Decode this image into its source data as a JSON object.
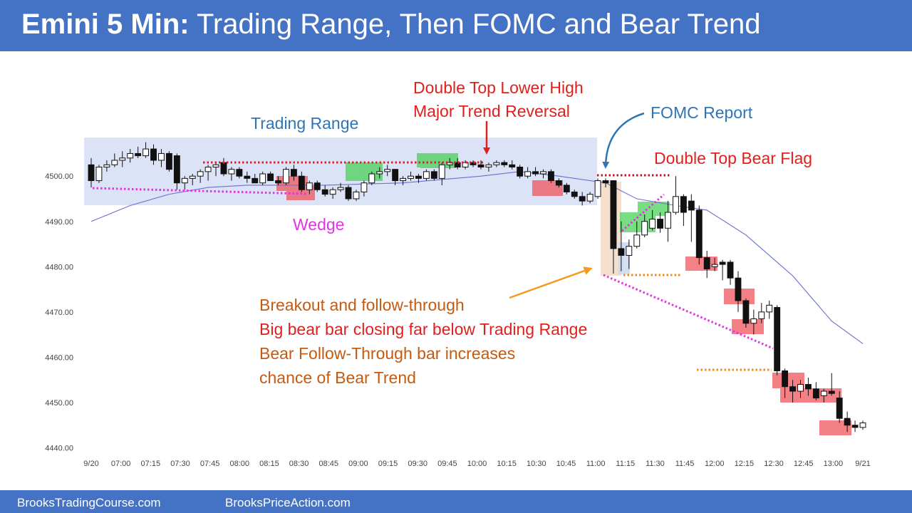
{
  "title": {
    "bold": "Emini 5 Min:",
    "rest": "Trading Range, Then FOMC and Bear Trend"
  },
  "footer": {
    "left": "BrooksTradingCourse.com",
    "right": "BrooksPriceAction.com"
  },
  "annotations": {
    "trading_range": "Trading Range",
    "double_top_1": "Double Top Lower High",
    "double_top_2": "Major Trend Reversal",
    "fomc": "FOMC Report",
    "dt_bear_flag": "Double Top Bear Flag",
    "wedge": "Wedge",
    "breakout_1": "Breakout and follow-through",
    "breakout_2": "Big bear bar closing far below Trading Range",
    "breakout_3": "Bear Follow-Through bar increases",
    "breakout_4": "chance of Bear Trend"
  },
  "colors": {
    "header_bg": "#4472c4",
    "range_box": "#dde3f7",
    "green_box": "#3fcf4f",
    "red_box": "#ef5057",
    "blue_text": "#2e75b6",
    "red_text": "#e0201d",
    "orange_text": "#c55a11",
    "magenta": "#e234e2",
    "ema": "#6a6fd0"
  },
  "chart_data": {
    "type": "candlestick",
    "ylim": [
      4438,
      4512
    ],
    "y_ticks": [
      "4440.00",
      "4450.00",
      "4460.00",
      "4470.00",
      "4480.00",
      "4490.00",
      "4500.00"
    ],
    "x_ticks": [
      "9/20",
      "07:00",
      "07:15",
      "07:30",
      "07:45",
      "08:00",
      "08:15",
      "08:30",
      "08:45",
      "09:00",
      "09:15",
      "09:30",
      "09:45",
      "10:00",
      "10:15",
      "10:30",
      "10:45",
      "11:00",
      "11:15",
      "11:30",
      "11:45",
      "12:00",
      "12:15",
      "12:30",
      "12:45",
      "13:00",
      "9/21"
    ],
    "bars": [
      [
        4502.5,
        4504.0,
        4497.5,
        4499.0
      ],
      [
        4499.0,
        4502.5,
        4498.5,
        4502.0
      ],
      [
        4502.0,
        4503.5,
        4501.0,
        4502.5
      ],
      [
        4502.5,
        4505.0,
        4502.0,
        4503.5
      ],
      [
        4503.5,
        4505.5,
        4502.0,
        4504.0
      ],
      [
        4504.0,
        4506.0,
        4503.0,
        4505.0
      ],
      [
        4505.0,
        4506.5,
        4504.0,
        4504.5
      ],
      [
        4504.5,
        4507.5,
        4504.0,
        4506.0
      ],
      [
        4506.0,
        4507.0,
        4502.5,
        4503.5
      ],
      [
        4503.5,
        4506.0,
        4502.0,
        4505.0
      ],
      [
        4505.0,
        4505.5,
        4501.0,
        4501.5
      ],
      [
        4504.5,
        4505.0,
        4497.0,
        4498.5
      ],
      [
        4498.5,
        4500.0,
        4497.0,
        4499.5
      ],
      [
        4499.5,
        4500.5,
        4498.0,
        4500.0
      ],
      [
        4500.0,
        4501.5,
        4498.5,
        4501.0
      ],
      [
        4501.0,
        4502.5,
        4499.0,
        4502.0
      ],
      [
        4502.0,
        4503.0,
        4500.0,
        4502.5
      ],
      [
        4503.0,
        4504.0,
        4500.0,
        4500.5
      ],
      [
        4500.5,
        4502.0,
        4499.0,
        4501.5
      ],
      [
        4501.5,
        4502.0,
        4499.5,
        4500.0
      ],
      [
        4500.0,
        4501.0,
        4498.5,
        4499.5
      ],
      [
        4499.5,
        4500.5,
        4498.5,
        4498.5
      ],
      [
        4498.5,
        4501.0,
        4498.0,
        4500.5
      ],
      [
        4500.5,
        4501.0,
        4499.0,
        4499.0
      ],
      [
        4499.0,
        4500.0,
        4498.0,
        4498.5
      ],
      [
        4498.5,
        4502.0,
        4498.0,
        4501.5
      ],
      [
        4501.5,
        4502.5,
        4499.0,
        4500.0
      ],
      [
        4500.0,
        4501.0,
        4496.5,
        4497.0
      ],
      [
        4497.0,
        4499.0,
        4496.0,
        4498.5
      ],
      [
        4498.5,
        4499.0,
        4496.5,
        4497.0
      ],
      [
        4497.0,
        4498.0,
        4495.5,
        4496.0
      ],
      [
        4496.0,
        4497.5,
        4495.0,
        4497.0
      ],
      [
        4497.0,
        4498.5,
        4496.5,
        4497.5
      ],
      [
        4497.5,
        4498.0,
        4494.5,
        4495.0
      ],
      [
        4495.0,
        4497.0,
        4494.5,
        4496.5
      ],
      [
        4496.5,
        4499.0,
        4495.5,
        4498.5
      ],
      [
        4498.5,
        4501.0,
        4498.0,
        4500.5
      ],
      [
        4500.5,
        4502.0,
        4499.5,
        4501.0
      ],
      [
        4501.0,
        4502.5,
        4500.0,
        4501.5
      ],
      [
        4501.5,
        4501.5,
        4498.0,
        4499.0
      ],
      [
        4499.0,
        4500.0,
        4498.0,
        4499.5
      ],
      [
        4499.5,
        4501.0,
        4499.0,
        4500.0
      ],
      [
        4500.0,
        4500.5,
        4498.5,
        4499.5
      ],
      [
        4499.5,
        4501.5,
        4499.0,
        4501.0
      ],
      [
        4501.0,
        4501.5,
        4499.0,
        4499.5
      ],
      [
        4499.5,
        4503.0,
        4498.0,
        4502.5
      ],
      [
        4502.5,
        4504.0,
        4501.5,
        4503.0
      ],
      [
        4503.0,
        4504.0,
        4501.5,
        4502.0
      ],
      [
        4502.0,
        4503.5,
        4501.5,
        4503.0
      ],
      [
        4503.0,
        4503.5,
        4502.0,
        4502.5
      ],
      [
        4502.5,
        4503.5,
        4501.5,
        4502.0
      ],
      [
        4502.0,
        4503.0,
        4501.0,
        4502.5
      ],
      [
        4502.5,
        4503.5,
        4502.0,
        4503.0
      ],
      [
        4503.0,
        4503.5,
        4502.0,
        4502.5
      ],
      [
        4502.5,
        4503.5,
        4501.5,
        4502.0
      ],
      [
        4502.0,
        4502.5,
        4499.5,
        4500.0
      ],
      [
        4500.0,
        4502.0,
        4499.5,
        4501.0
      ],
      [
        4501.0,
        4502.0,
        4500.0,
        4500.5
      ],
      [
        4500.5,
        4501.5,
        4499.5,
        4501.0
      ],
      [
        4501.0,
        4501.5,
        4498.5,
        4499.0
      ],
      [
        4499.0,
        4499.5,
        4497.5,
        4498.0
      ],
      [
        4498.0,
        4498.5,
        4496.0,
        4496.5
      ],
      [
        4496.5,
        4497.0,
        4495.0,
        4495.5
      ],
      [
        4495.5,
        4496.5,
        4493.5,
        4494.5
      ],
      [
        4494.5,
        4496.5,
        4494.0,
        4496.0
      ],
      [
        4495.5,
        4499.5,
        4495.0,
        4499.0
      ],
      [
        4499.0,
        4499.5,
        4497.5,
        4498.5
      ],
      [
        4499.0,
        4499.0,
        4478.5,
        4484.0
      ],
      [
        4484.0,
        4490.0,
        4479.0,
        4482.5
      ],
      [
        4482.5,
        4486.0,
        4479.5,
        4484.5
      ],
      [
        4484.5,
        4490.0,
        4484.0,
        4487.0
      ],
      [
        4487.0,
        4491.5,
        4486.5,
        4490.0
      ],
      [
        4488.5,
        4492.5,
        4488.0,
        4490.5
      ],
      [
        4490.5,
        4492.0,
        4487.5,
        4488.5
      ],
      [
        4488.5,
        4494.5,
        4485.5,
        4492.0
      ],
      [
        4492.0,
        4500.0,
        4491.5,
        4495.5
      ],
      [
        4495.5,
        4496.0,
        4489.0,
        4492.0
      ],
      [
        4494.5,
        4496.0,
        4485.5,
        4492.5
      ],
      [
        4492.5,
        4493.5,
        4480.5,
        4482.0
      ],
      [
        4482.0,
        4483.5,
        4477.5,
        4479.5
      ],
      [
        4480.0,
        4482.0,
        4479.0,
        4480.5
      ],
      [
        4481.0,
        4481.5,
        4477.0,
        4480.5
      ],
      [
        4481.0,
        4481.5,
        4476.0,
        4477.5
      ],
      [
        4477.5,
        4479.0,
        4470.0,
        4472.5
      ],
      [
        4472.5,
        4473.0,
        4466.5,
        4467.5
      ],
      [
        4467.5,
        4470.5,
        4465.0,
        4468.5
      ],
      [
        4468.5,
        4472.0,
        4467.5,
        4470.0
      ],
      [
        4470.0,
        4472.5,
        4468.5,
        4471.5
      ],
      [
        4471.0,
        4471.5,
        4456.0,
        4457.0
      ],
      [
        4457.0,
        4457.5,
        4451.0,
        4453.5
      ],
      [
        4453.5,
        4455.0,
        4450.0,
        4452.5
      ],
      [
        4452.5,
        4455.0,
        4451.0,
        4454.0
      ],
      [
        4454.0,
        4455.5,
        4451.5,
        4453.0
      ],
      [
        4453.0,
        4454.5,
        4450.5,
        4451.0
      ],
      [
        4451.5,
        4453.0,
        4450.0,
        4452.5
      ],
      [
        4452.5,
        4456.5,
        4451.5,
        4452.0
      ],
      [
        4451.0,
        4452.5,
        4445.5,
        4446.5
      ],
      [
        4446.5,
        4448.0,
        4443.5,
        4445.0
      ],
      [
        4445.0,
        4446.0,
        4443.5,
        4444.5
      ],
      [
        4444.5,
        4446.0,
        4444.0,
        4445.5
      ]
    ],
    "ema": [
      [
        0,
        4490.0
      ],
      [
        5,
        4493.5
      ],
      [
        10,
        4496.0
      ],
      [
        15,
        4497.5
      ],
      [
        20,
        4498.0
      ],
      [
        30,
        4498.0
      ],
      [
        40,
        4498.5
      ],
      [
        50,
        4500.0
      ],
      [
        55,
        4501.0
      ],
      [
        60,
        4500.0
      ],
      [
        66,
        4498.5
      ],
      [
        70,
        4495.0
      ],
      [
        75,
        4493.5
      ],
      [
        79,
        4492.5
      ],
      [
        84,
        4487.0
      ],
      [
        90,
        4478.0
      ],
      [
        95,
        4468.0
      ],
      [
        99,
        4463.0
      ]
    ]
  }
}
